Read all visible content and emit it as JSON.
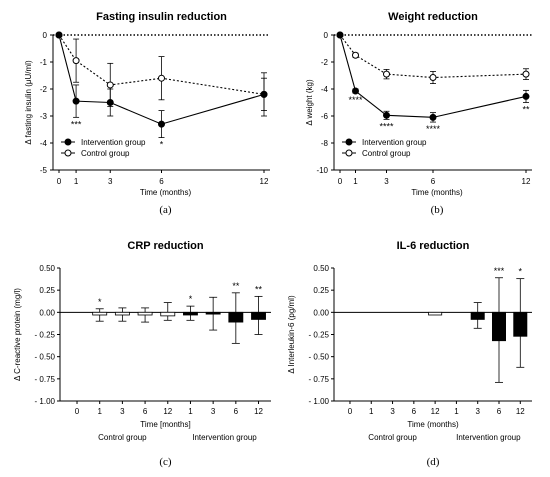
{
  "chart_data": [
    {
      "id": "a",
      "type": "line",
      "panel_label": "(a)",
      "title": "Fasting insulin reduction",
      "xlabel": "Time (months)",
      "ylabel": "Δ fasting insulin (μU/ml)",
      "ylim": [
        -5,
        0
      ],
      "yticks": [
        0,
        -1,
        -2,
        -3,
        -4,
        -5
      ],
      "xticks": [
        0,
        1,
        3,
        6,
        12
      ],
      "legend_position": "bottom-left",
      "series": [
        {
          "name": "Intervention group",
          "marker": "filled",
          "x": [
            0,
            1,
            3,
            6,
            12
          ],
          "y": [
            0,
            -2.45,
            -2.5,
            -3.3,
            -2.2
          ],
          "err": [
            0,
            0.6,
            0.5,
            0.5,
            0.6
          ],
          "sig": [
            "",
            "***",
            "",
            "*",
            ""
          ]
        },
        {
          "name": "Control group",
          "marker": "open",
          "x": [
            0,
            1,
            3,
            6,
            12
          ],
          "y": [
            0,
            -0.95,
            -1.85,
            -1.6,
            -2.2
          ],
          "err": [
            0,
            0.8,
            0.8,
            0.8,
            0.8
          ],
          "sig": [
            "",
            "",
            "",
            "",
            ""
          ]
        }
      ]
    },
    {
      "id": "b",
      "type": "line",
      "panel_label": "(b)",
      "title": "Weight reduction",
      "xlabel": "Time (months)",
      "ylabel": "Δ weight (kg)",
      "ylim": [
        -10,
        0
      ],
      "yticks": [
        0,
        -2,
        -4,
        -6,
        -8,
        -10
      ],
      "xticks": [
        0,
        1,
        3,
        6,
        12
      ],
      "legend_position": "bottom-left",
      "series": [
        {
          "name": "Intervention group",
          "marker": "filled",
          "x": [
            0,
            1,
            3,
            6,
            12
          ],
          "y": [
            0,
            -4.15,
            -5.95,
            -6.1,
            -4.55
          ],
          "err": [
            0,
            0.15,
            0.3,
            0.35,
            0.45
          ],
          "sig": [
            "",
            "****",
            "****",
            "****",
            "**"
          ]
        },
        {
          "name": "Control group",
          "marker": "open",
          "x": [
            0,
            1,
            3,
            6,
            12
          ],
          "y": [
            0,
            -1.5,
            -2.9,
            -3.15,
            -2.9
          ],
          "err": [
            0,
            0.15,
            0.35,
            0.45,
            0.4
          ],
          "sig": [
            "",
            "",
            "",
            "",
            ""
          ]
        }
      ]
    },
    {
      "id": "c",
      "type": "bar",
      "panel_label": "(c)",
      "title": "CRP reduction",
      "xlabel": "Time [months]",
      "ylabel": "Δ C-reactive protein (mg/l)",
      "ylim": [
        -1.0,
        0.5
      ],
      "yticks": [
        0.5,
        0.25,
        0.0,
        -0.25,
        -0.5,
        -0.75,
        -1.0
      ],
      "ytick_labels": [
        "0.50",
        "0.25",
        "0.00",
        "- 0.25",
        "- 0.50",
        "- 0.75",
        "- 1.00"
      ],
      "categories": [
        "0",
        "1",
        "3",
        "6",
        "12",
        "1",
        "3",
        "6",
        "12"
      ],
      "groups": [
        {
          "label": "Control group",
          "fill": "open",
          "start": 0,
          "end": 4
        },
        {
          "label": "Intervention group",
          "fill": "filled",
          "start": 5,
          "end": 8
        }
      ],
      "values": [
        0,
        -0.03,
        -0.03,
        -0.03,
        -0.04,
        -0.03,
        -0.02,
        -0.11,
        -0.08
      ],
      "err_up": [
        0,
        0.07,
        0.08,
        0.08,
        0.15,
        0.1,
        0.19,
        0.33,
        0.26
      ],
      "err_down": [
        0,
        0.07,
        0.07,
        0.08,
        0.05,
        0.06,
        0.18,
        0.24,
        0.17
      ],
      "sig": [
        "",
        "*",
        "",
        "",
        "",
        "*",
        "",
        "**",
        "**"
      ]
    },
    {
      "id": "d",
      "type": "bar",
      "panel_label": "(d)",
      "title": "IL-6 reduction",
      "xlabel": "Time (months)",
      "ylabel": "Δ Interleukin-6 (pg/ml)",
      "ylim": [
        -1.0,
        0.5
      ],
      "yticks": [
        0.5,
        0.25,
        0.0,
        -0.25,
        -0.5,
        -0.75,
        -1.0
      ],
      "ytick_labels": [
        "0.50",
        "0.25",
        "0.00",
        "- 0.25",
        "- 0.50",
        "- 0.75",
        "- 1.00"
      ],
      "categories": [
        "0",
        "1",
        "3",
        "6",
        "12",
        "1",
        "3",
        "6",
        "12"
      ],
      "groups": [
        {
          "label": "Control group",
          "fill": "open",
          "start": 0,
          "end": 4
        },
        {
          "label": "Intervention group",
          "fill": "filled",
          "start": 5,
          "end": 8
        }
      ],
      "values": [
        0,
        0,
        0,
        0,
        -0.03,
        0,
        -0.08,
        -0.32,
        -0.27
      ],
      "err_up": [
        0,
        0,
        0,
        0,
        0,
        0,
        0.19,
        0.71,
        0.65
      ],
      "err_down": [
        0,
        0,
        0,
        0,
        0,
        0,
        0.1,
        0.47,
        0.35
      ],
      "sig": [
        "",
        "",
        "",
        "",
        "",
        "",
        "",
        "***",
        "*"
      ]
    }
  ]
}
